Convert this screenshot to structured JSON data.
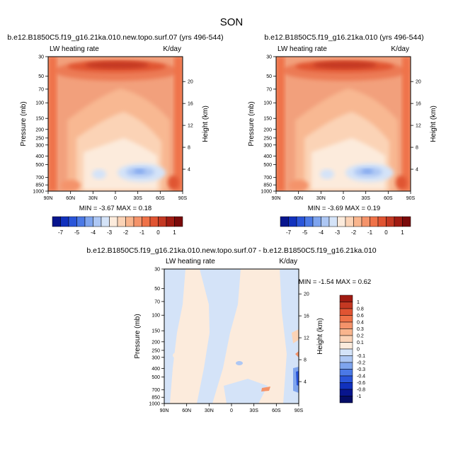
{
  "figure": {
    "title": "SON"
  },
  "panels": [
    {
      "title": "b.e12.B1850C5.f19_g16.21ka.010.new.topo.surf.07 (yrs 496-544)",
      "left_label": "LW heating rate",
      "right_label": "K/day",
      "stats": "MIN =  -3.67   MAX =   0.18"
    },
    {
      "title": "b.e12.B1850C5.f19_g16.21ka.010 (yrs 496-544)",
      "left_label": "LW heating rate",
      "right_label": "K/day",
      "stats": "MIN =  -3.69   MAX =   0.19"
    },
    {
      "title": "b.e12.B1850C5.f19_g16.21ka.010.new.topo.surf.07 - b.e12.B1850C5.f19_g16.21ka.010",
      "left_label": "LW heating rate",
      "right_label": "K/day",
      "stats": "MIN = -1.54   MAX =   0.62"
    }
  ],
  "chart_data": [
    {
      "type": "heatmap",
      "title": "b.e12.B1850C5.f19_g16.21ka.010.new.topo.surf.07 (yrs 496-544)",
      "subtitle": "LW heating rate",
      "units": "K/day",
      "xlabel": "",
      "ylabel": "Pressure (mb)",
      "ylabel_right": "Height (km)",
      "x_ticks": [
        "90N",
        "60N",
        "30N",
        "0",
        "30S",
        "60S",
        "90S"
      ],
      "y_ticks": [
        "30",
        "50",
        "70",
        "100",
        "150",
        "200",
        "250",
        "300",
        "400",
        "500",
        "700",
        "850",
        "1000"
      ],
      "y_right_ticks": [
        "20",
        "16",
        "12",
        "8",
        "4"
      ],
      "y_scale": "log",
      "ylim": [
        1000,
        30
      ],
      "min": -3.67,
      "max": 0.18,
      "grid": false
    },
    {
      "type": "heatmap",
      "title": "b.e12.B1850C5.f19_g16.21ka.010 (yrs 496-544)",
      "subtitle": "LW heating rate",
      "units": "K/day",
      "xlabel": "",
      "ylabel": "Pressure (mb)",
      "ylabel_right": "Height (km)",
      "x_ticks": [
        "90N",
        "60N",
        "30N",
        "0",
        "30S",
        "60S",
        "90S"
      ],
      "y_ticks": [
        "30",
        "50",
        "70",
        "100",
        "150",
        "200",
        "250",
        "300",
        "400",
        "500",
        "700",
        "850",
        "1000"
      ],
      "y_right_ticks": [
        "20",
        "16",
        "12",
        "8",
        "4"
      ],
      "y_scale": "log",
      "ylim": [
        1000,
        30
      ],
      "min": -3.69,
      "max": 0.19,
      "grid": false
    },
    {
      "type": "heatmap",
      "title": "b.e12.B1850C5.f19_g16.21ka.010.new.topo.surf.07 - b.e12.B1850C5.f19_g16.21ka.010",
      "subtitle": "LW heating rate",
      "units": "K/day",
      "xlabel": "",
      "ylabel": "Pressure (mb)",
      "ylabel_right": "Height (km)",
      "x_ticks": [
        "90N",
        "60N",
        "30N",
        "0",
        "30S",
        "60S",
        "90S"
      ],
      "y_ticks": [
        "30",
        "50",
        "70",
        "100",
        "150",
        "200",
        "250",
        "300",
        "400",
        "500",
        "700",
        "850",
        "1000"
      ],
      "y_right_ticks": [
        "20",
        "16",
        "12",
        "8",
        "4"
      ],
      "y_scale": "log",
      "ylim": [
        1000,
        30
      ],
      "min": -1.54,
      "max": 0.62,
      "grid": false
    }
  ],
  "colorbars": {
    "abs": {
      "labels": [
        "-7",
        "-5",
        "-4",
        "-3",
        "-2",
        "-1",
        "0",
        "1"
      ],
      "colors": [
        "#08158e",
        "#1131bd",
        "#2a55d9",
        "#4b79e6",
        "#7ea4ee",
        "#adc7f4",
        "#d4e3f8",
        "#fcebdc",
        "#fbd3b6",
        "#f9b58d",
        "#f4936a",
        "#ef7248",
        "#e05432",
        "#c43822",
        "#a01b12",
        "#7a0a0a"
      ]
    },
    "diff": {
      "labels": [
        "1",
        "0.8",
        "0.6",
        "0.4",
        "0.3",
        "0.2",
        "0.1",
        "0",
        "-0.1",
        "-0.2",
        "-0.3",
        "-0.4",
        "-0.6",
        "-0.8",
        "-1"
      ],
      "colors": [
        "#a01b12",
        "#c43822",
        "#e05432",
        "#ef7248",
        "#f4936a",
        "#f9b58d",
        "#fbd3b6",
        "#fcebdc",
        "#d4e3f8",
        "#adc7f4",
        "#7ea4ee",
        "#4b79e6",
        "#2a55d9",
        "#1131bd",
        "#08158e",
        "#050d66"
      ]
    }
  }
}
